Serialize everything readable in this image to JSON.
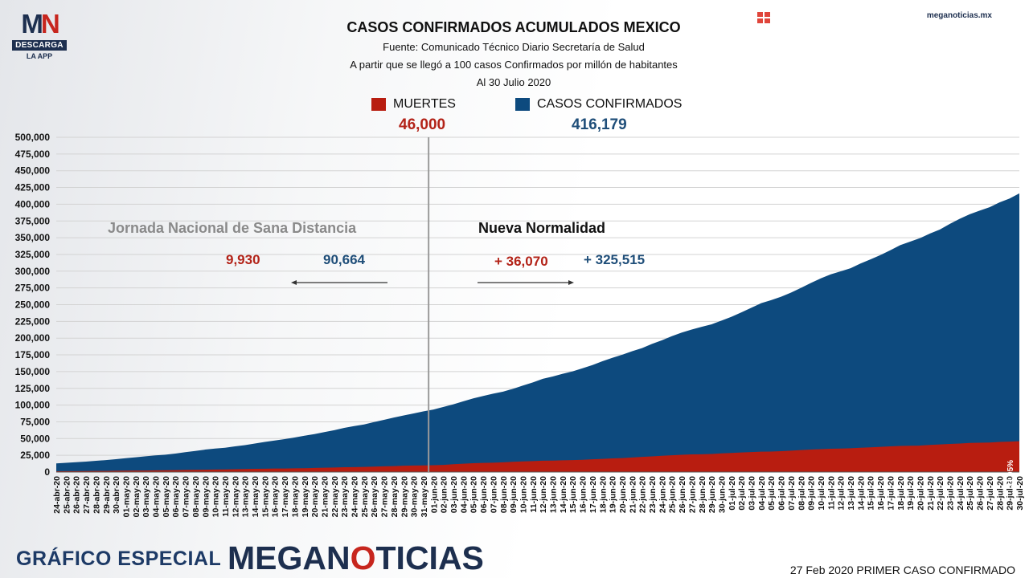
{
  "logo": {
    "mark_m": "M",
    "mark_n": "N",
    "pill": "DESCARGA",
    "sub": "LA APP"
  },
  "site": "meganoticias.mx",
  "header": {
    "title": "CASOS CONFIRMADOS ACUMULADOS MEXICO",
    "source": "Fuente: Comunicado Técnico Diario Secretaría de Salud",
    "note": "A partir que se llegó a 100 casos Confirmados por millón de habitantes",
    "date": "Al 30 Julio 2020"
  },
  "legend": {
    "deaths_label": "MUERTES",
    "deaths_total": "46,000",
    "cases_label": "CASOS CONFIRMADOS",
    "cases_total": "416,179"
  },
  "phases": {
    "left": "Jornada Nacional de Sana Distancia",
    "right": "Nueva Normalidad",
    "left_deaths": "9,930",
    "left_cases": "90,664",
    "right_deaths": "+ 36,070",
    "right_cases": "+ 325,515"
  },
  "end_label": "11.05%",
  "footer": {
    "left": "GRÁFICO ESPECIAL",
    "brand_a": "MEGAN",
    "brand_o": "O",
    "brand_b": "TICIAS",
    "right": "27 Feb 2020 PRIMER CASO CONFIRMADO"
  },
  "colors": {
    "cases": "#0d4a7e",
    "deaths": "#b81d10",
    "divider": "#9a9a9a"
  },
  "chart_data": {
    "type": "area",
    "title": "CASOS CONFIRMADOS ACUMULADOS MEXICO",
    "ylim": [
      0,
      500000
    ],
    "yticks": [
      0,
      25000,
      50000,
      75000,
      100000,
      125000,
      150000,
      175000,
      200000,
      225000,
      250000,
      275000,
      300000,
      325000,
      350000,
      375000,
      400000,
      425000,
      450000,
      475000,
      500000
    ],
    "ytick_labels": [
      "0",
      "25,000",
      "50,000",
      "75,000",
      "100,000",
      "125,000",
      "150,000",
      "175,000",
      "200,000",
      "225,000",
      "250,000",
      "275,000",
      "300,000",
      "325,000",
      "350,000",
      "375,000",
      "400,000",
      "425,000",
      "450,000",
      "475,000",
      "500,000"
    ],
    "grid": true,
    "legend_position": "top-center",
    "divider_at": "01-jun-20",
    "x": [
      "24-abr-20",
      "25-abr-20",
      "26-abr-20",
      "27-abr-20",
      "28-abr-20",
      "29-abr-20",
      "30-abr-20",
      "01-may-20",
      "02-may-20",
      "03-may-20",
      "04-may-20",
      "05-may-20",
      "06-may-20",
      "07-may-20",
      "08-may-20",
      "09-may-20",
      "10-may-20",
      "11-may-20",
      "12-may-20",
      "13-may-20",
      "14-may-20",
      "15-may-20",
      "16-may-20",
      "17-may-20",
      "18-may-20",
      "19-may-20",
      "20-may-20",
      "21-may-20",
      "22-may-20",
      "23-may-20",
      "24-may-20",
      "25-may-20",
      "26-may-20",
      "27-may-20",
      "28-may-20",
      "29-may-20",
      "30-may-20",
      "31-may-20",
      "01-jun-20",
      "02-jun-20",
      "03-jun-20",
      "04-jun-20",
      "05-jun-20",
      "06-jun-20",
      "07-jun-20",
      "08-jun-20",
      "09-jun-20",
      "10-jun-20",
      "11-jun-20",
      "12-jun-20",
      "13-jun-20",
      "14-jun-20",
      "15-jun-20",
      "16-jun-20",
      "17-jun-20",
      "18-jun-20",
      "19-jun-20",
      "20-jun-20",
      "21-jun-20",
      "22-jun-20",
      "23-jun-20",
      "24-jun-20",
      "25-jun-20",
      "26-jun-20",
      "27-jun-20",
      "28-jun-20",
      "29-jun-20",
      "30-jun-20",
      "01-jul-20",
      "02-jul-20",
      "03-jul-20",
      "04-jul-20",
      "05-jul-20",
      "06-jul-20",
      "07-jul-20",
      "08-jul-20",
      "09-jul-20",
      "10-jul-20",
      "11-jul-20",
      "12-jul-20",
      "13-jul-20",
      "14-jul-20",
      "15-jul-20",
      "16-jul-20",
      "17-jul-20",
      "18-jul-20",
      "19-jul-20",
      "20-jul-20",
      "21-jul-20",
      "22-jul-20",
      "23-jul-20",
      "24-jul-20",
      "25-jul-20",
      "26-jul-20",
      "27-jul-20",
      "28-jul-20",
      "29-jul-20",
      "30-jul-20"
    ],
    "series": [
      {
        "name": "CASOS CONFIRMADOS",
        "values": [
          12900,
          13800,
          14700,
          15600,
          16800,
          17800,
          19200,
          20700,
          22100,
          23500,
          24900,
          26000,
          27600,
          29600,
          31500,
          33500,
          35000,
          36300,
          38300,
          40200,
          42600,
          45000,
          47100,
          49200,
          51600,
          54300,
          56600,
          59600,
          62500,
          65900,
          68600,
          71100,
          74600,
          78000,
          81400,
          84600,
          87500,
          90664,
          93400,
          97300,
          101200,
          105700,
          110000,
          113600,
          117100,
          120100,
          124300,
          129200,
          133900,
          139200,
          142700,
          146800,
          150300,
          154900,
          159800,
          165500,
          170500,
          175200,
          180500,
          185100,
          191400,
          196800,
          202900,
          208400,
          212800,
          216900,
          220700,
          226100,
          231800,
          238500,
          245300,
          252200,
          256800,
          261800,
          268000,
          275000,
          282300,
          289200,
          295300,
          299800,
          304400,
          311500,
          317600,
          324000,
          331300,
          338900,
          344200,
          349400,
          356300,
          362300,
          370700,
          378300,
          385000,
          390500,
          395500,
          402700,
          408400,
          416179
        ]
      },
      {
        "name": "MUERTES",
        "values": [
          1200,
          1300,
          1400,
          1500,
          1600,
          1700,
          1900,
          2100,
          2200,
          2300,
          2500,
          2700,
          2900,
          3100,
          3300,
          3500,
          3700,
          3900,
          4200,
          4500,
          4800,
          5000,
          5200,
          5300,
          5500,
          5700,
          6100,
          6500,
          6800,
          7200,
          7400,
          7600,
          8100,
          8600,
          8900,
          9400,
          9700,
          9930,
          10200,
          10700,
          11700,
          12500,
          13200,
          13700,
          14000,
          14600,
          15300,
          15900,
          16400,
          16900,
          17100,
          17600,
          17800,
          18300,
          19100,
          19700,
          20400,
          20800,
          21800,
          22600,
          23400,
          24300,
          25100,
          25800,
          26400,
          26600,
          27000,
          27800,
          28500,
          29200,
          29800,
          30400,
          30600,
          31100,
          31900,
          32800,
          33500,
          34200,
          34700,
          35000,
          35500,
          36300,
          36900,
          37600,
          38300,
          38900,
          39200,
          39500,
          40400,
          41200,
          41900,
          42600,
          43400,
          43700,
          44000,
          44900,
          45400,
          46000
        ]
      }
    ]
  }
}
